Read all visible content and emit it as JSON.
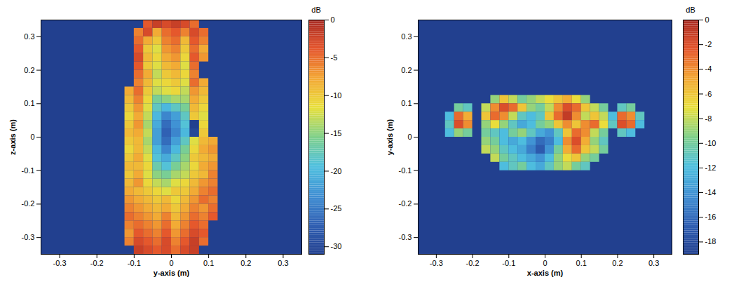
{
  "chart_data": [
    {
      "type": "heatmap",
      "xlabel": "y-axis (m)",
      "ylabel": "z-axis (m)",
      "xlim": [
        -0.35,
        0.35
      ],
      "ylim": [
        -0.35,
        0.35
      ],
      "xticks": [
        -0.3,
        -0.2,
        -0.1,
        0,
        0.1,
        0.2,
        0.3
      ],
      "yticks": [
        -0.3,
        -0.2,
        -0.1,
        0,
        0.1,
        0.2,
        0.3
      ],
      "colorbar_label": "dB",
      "colorbar_range": [
        -31,
        0
      ],
      "colorbar_ticks": [
        0,
        -5,
        -10,
        -15,
        -20,
        -25,
        -30
      ],
      "cell_x": [
        -0.1125,
        -0.0875,
        -0.0625,
        -0.0375,
        -0.0125,
        0.0125,
        0.0375,
        0.0625,
        0.0875,
        0.1125
      ],
      "cell_y": [
        0.3375,
        0.3125,
        0.2875,
        0.2625,
        0.2375,
        0.2125,
        0.1875,
        0.1625,
        0.1375,
        0.1125,
        0.0875,
        0.0625,
        0.0375,
        0.0125,
        -0.0125,
        -0.0375,
        -0.0625,
        -0.0875,
        -0.1125,
        -0.1375,
        -0.1625,
        -0.1875,
        -0.2125,
        -0.2375,
        -0.2625,
        -0.2875,
        -0.3125,
        -0.3375
      ],
      "cells": [
        [
          null,
          null,
          -4,
          -2,
          -3,
          -2,
          -3,
          -5,
          null,
          null
        ],
        [
          null,
          -6,
          -3,
          -8,
          -5,
          -4,
          -6,
          -3,
          -5,
          null
        ],
        [
          null,
          -5,
          -8,
          -10,
          -6,
          -5,
          -9,
          -4,
          -6,
          null
        ],
        [
          null,
          -4,
          -10,
          -12,
          -7,
          -6,
          -10,
          -5,
          -8,
          null
        ],
        [
          null,
          -3,
          -9,
          -11,
          -8,
          -7,
          -11,
          -4,
          -7,
          null
        ],
        [
          null,
          -4,
          -10,
          -12,
          -9,
          -8,
          -12,
          -5,
          null,
          null
        ],
        [
          null,
          -5,
          -8,
          -13,
          -10,
          -9,
          -11,
          -6,
          null,
          null
        ],
        [
          null,
          -6,
          -9,
          -12,
          -11,
          -10,
          -12,
          -5,
          -8,
          null
        ],
        [
          -8,
          -5,
          -10,
          -13,
          -12,
          -11,
          -13,
          -7,
          -9,
          null
        ],
        [
          -9,
          -6,
          -11,
          -16,
          -15,
          -14,
          -14,
          -8,
          -10,
          null
        ],
        [
          -10,
          -7,
          -12,
          -18,
          -20,
          -18,
          -16,
          -9,
          -11,
          null
        ],
        [
          -11,
          -8,
          -13,
          -20,
          -24,
          -22,
          -18,
          -10,
          -12,
          null
        ],
        [
          -10,
          -7,
          -14,
          -21,
          -26,
          -23,
          -19,
          -31,
          -11,
          null
        ],
        [
          -9,
          -8,
          -13,
          -22,
          -27,
          -24,
          -20,
          -30,
          -10,
          null
        ],
        [
          -10,
          -9,
          -14,
          -22,
          -26,
          -22,
          -18,
          -12,
          -9,
          -8
        ],
        [
          -11,
          -9,
          -13,
          -20,
          -24,
          -20,
          -16,
          -11,
          -8,
          -7
        ],
        [
          -10,
          -8,
          -12,
          -19,
          -21,
          -18,
          -15,
          -10,
          -9,
          -8
        ],
        [
          -9,
          -9,
          -11,
          -17,
          -19,
          -16,
          -14,
          -11,
          -8,
          -7
        ],
        [
          -10,
          -8,
          -12,
          -15,
          -16,
          -14,
          -13,
          -10,
          -9,
          -6
        ],
        [
          -9,
          -7,
          -11,
          -13,
          -14,
          -12,
          -11,
          -9,
          -7,
          -6
        ],
        [
          -8,
          -9,
          -10,
          -11,
          -12,
          -10,
          -10,
          -8,
          -6,
          -5
        ],
        [
          -7,
          -8,
          -9,
          -10,
          -9,
          -11,
          -9,
          -7,
          -5,
          -6
        ],
        [
          -6,
          -7,
          -8,
          -9,
          -8,
          -10,
          -8,
          -6,
          -7,
          -5
        ],
        [
          -5,
          -6,
          -7,
          -8,
          -6,
          -9,
          -7,
          -5,
          -6,
          -4
        ],
        [
          -6,
          -5,
          -6,
          -7,
          -5,
          -8,
          -6,
          -4,
          -5,
          null
        ],
        [
          -7,
          -4,
          -5,
          -6,
          -4,
          -7,
          -5,
          -3,
          -4,
          null
        ],
        [
          -6,
          -3,
          -4,
          -5,
          -3,
          -6,
          -4,
          -2,
          -5,
          null
        ],
        [
          null,
          -2,
          -3,
          -4,
          -3,
          -5,
          -3,
          -2,
          null,
          null
        ]
      ]
    },
    {
      "type": "heatmap",
      "xlabel": "x-axis (m)",
      "ylabel": "y-axis (m)",
      "xlim": [
        -0.35,
        0.35
      ],
      "ylim": [
        -0.35,
        0.35
      ],
      "xticks": [
        -0.3,
        -0.2,
        -0.1,
        0,
        0.1,
        0.2,
        0.3
      ],
      "yticks": [
        -0.3,
        -0.2,
        -0.1,
        0,
        0.1,
        0.2,
        0.3
      ],
      "colorbar_label": "dB",
      "colorbar_range": [
        -19,
        0
      ],
      "colorbar_ticks": [
        0,
        -2,
        -4,
        -6,
        -8,
        -10,
        -12,
        -14,
        -16,
        -18
      ],
      "cell_x": [
        -0.2625,
        -0.2375,
        -0.2125,
        -0.1875,
        -0.1625,
        -0.1375,
        -0.1125,
        -0.0875,
        -0.0625,
        -0.0375,
        -0.0125,
        0.0125,
        0.0375,
        0.0625,
        0.0875,
        0.1125,
        0.1375,
        0.1625,
        0.1875,
        0.2125,
        0.2375,
        0.2625
      ],
      "cell_y": [
        0.1125,
        0.0875,
        0.0625,
        0.0375,
        0.0125,
        -0.0125,
        -0.0375,
        -0.0625,
        -0.0875
      ],
      "cells": [
        [
          null,
          null,
          null,
          null,
          null,
          -9,
          -6,
          -8,
          -10,
          -9,
          -8,
          -7,
          -6,
          -5,
          -7,
          -9,
          null,
          null,
          null,
          null,
          null,
          null
        ],
        [
          null,
          -10,
          -11,
          null,
          -8,
          -4,
          -2,
          -3,
          -6,
          -9,
          -10,
          -8,
          -4,
          -2,
          -3,
          -6,
          -8,
          -10,
          null,
          -11,
          -10,
          null
        ],
        [
          -12,
          -3,
          -5,
          null,
          -6,
          -3,
          -4,
          -8,
          -11,
          -12,
          -11,
          -6,
          -3,
          -1,
          -4,
          -8,
          -6,
          -8,
          -12,
          -3,
          -4,
          -11
        ],
        [
          -11,
          -2,
          -4,
          null,
          -9,
          -7,
          -9,
          -11,
          -13,
          -12,
          -10,
          -9,
          -6,
          -4,
          -6,
          -4,
          -3,
          -7,
          -11,
          -2,
          -3,
          -12
        ],
        [
          -12,
          -9,
          -10,
          null,
          -10,
          -11,
          -12,
          -10,
          -9,
          -11,
          -13,
          -14,
          -11,
          -6,
          -3,
          -4,
          -8,
          -10,
          null,
          -11,
          -12,
          null
        ],
        [
          null,
          null,
          null,
          null,
          -9,
          -10,
          -12,
          -13,
          -12,
          -14,
          -16,
          -15,
          -12,
          -4,
          -2,
          -5,
          -9,
          -11,
          null,
          null,
          null,
          null
        ],
        [
          null,
          null,
          null,
          null,
          -8,
          -9,
          -11,
          -12,
          -13,
          -15,
          -17,
          -14,
          -10,
          -5,
          -3,
          -6,
          -8,
          -10,
          null,
          null,
          null,
          null
        ],
        [
          null,
          null,
          null,
          null,
          null,
          -8,
          -10,
          -11,
          -12,
          -13,
          -14,
          -12,
          -9,
          -7,
          -6,
          -9,
          -10,
          null,
          null,
          null,
          null,
          null
        ],
        [
          null,
          null,
          null,
          null,
          null,
          null,
          -12,
          -11,
          -10,
          -12,
          -13,
          -11,
          -9,
          -8,
          -10,
          -11,
          null,
          null,
          null,
          null,
          null,
          null
        ]
      ]
    }
  ]
}
